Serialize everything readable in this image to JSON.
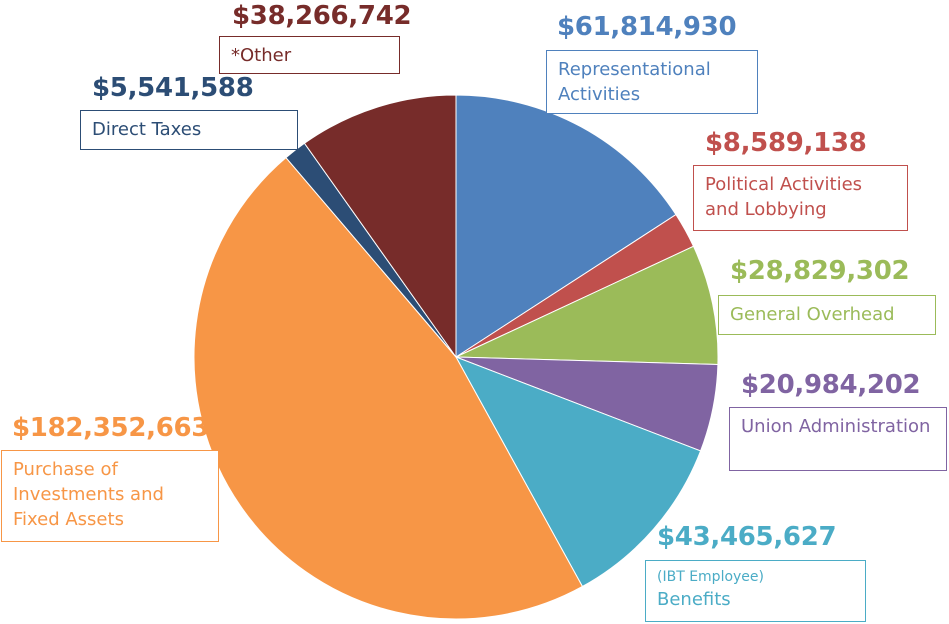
{
  "chart_data": {
    "type": "pie",
    "start": "top",
    "direction": "clockwise",
    "slices": [
      {
        "value_label": "$61,814,930",
        "label": "Representational Activities",
        "value": 61814930,
        "color": "#4F81BD"
      },
      {
        "value_label": "$8,589,138",
        "label": "Political Activities and Lobbying",
        "value": 8589138,
        "color": "#C0504D"
      },
      {
        "value_label": "$28,829,302",
        "label": "General Overhead",
        "value": 28829302,
        "color": "#9BBB59"
      },
      {
        "value_label": "$20,984,202",
        "label": "Union Administration",
        "value": 20984202,
        "color": "#8064A2"
      },
      {
        "value_label": "$43,465,627",
        "label_prefix": "(IBT Employee)",
        "label": "Benefits",
        "value": 43465627,
        "color": "#4BACC6"
      },
      {
        "value_label": "$182,352,663",
        "label": "Purchase of Investments and Fixed Assets",
        "value": 182352663,
        "color": "#F79646"
      },
      {
        "value_label": "$5,541,588",
        "label": "Direct Taxes",
        "value": 5541588,
        "color": "#2C4D75"
      },
      {
        "value_label": "$38,266,742",
        "label": "*Other",
        "value": 38266742,
        "color": "#772C2A"
      }
    ]
  }
}
